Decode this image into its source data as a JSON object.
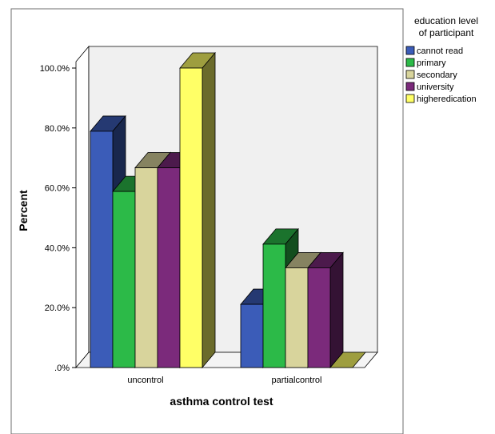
{
  "chart_data": {
    "type": "bar",
    "style": "3d-clustered",
    "categories": [
      "uncontrol",
      "partialcontrol"
    ],
    "series": [
      {
        "name": "cannot read",
        "values": [
          78.9,
          21.1
        ],
        "color": "#3b5cb8"
      },
      {
        "name": "primary",
        "values": [
          58.8,
          41.2
        ],
        "color": "#2cba48"
      },
      {
        "name": "secondary",
        "values": [
          66.7,
          33.3
        ],
        "color": "#d8d49c"
      },
      {
        "name": "university",
        "values": [
          66.7,
          33.3
        ],
        "color": "#7b2a7b"
      },
      {
        "name": "higheredication",
        "values": [
          100.0,
          0.0
        ],
        "color": "#ffff66"
      }
    ],
    "xlabel": "asthma control test",
    "ylabel": "Percent",
    "ylim": [
      0,
      100
    ],
    "yticks": [
      ".0%",
      "20.0%",
      "40.0%",
      "60.0%",
      "80.0%",
      "100.0%"
    ],
    "legend": {
      "title_lines": [
        "education level",
        "of participant"
      ],
      "placement": "right",
      "entries": [
        "cannot read",
        "primary",
        "secondary",
        "university",
        "higheredication"
      ]
    },
    "grid": false
  }
}
